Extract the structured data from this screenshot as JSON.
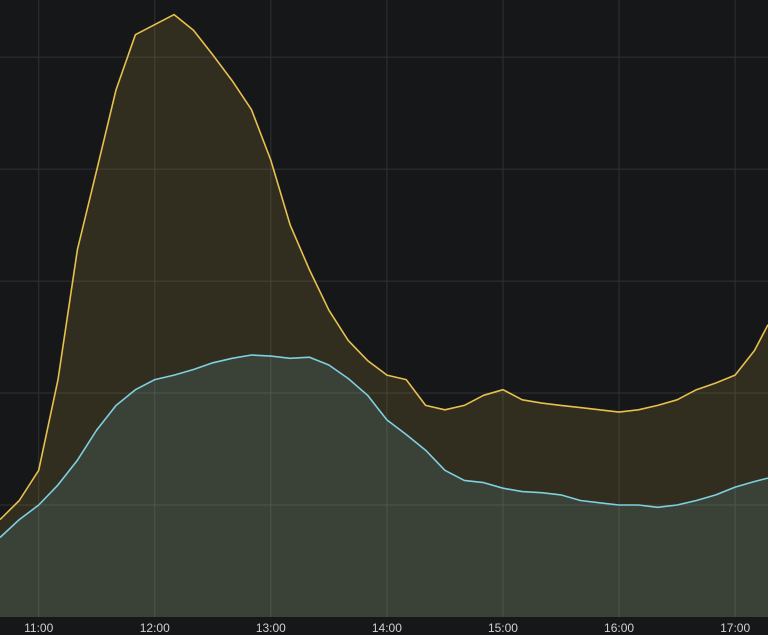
{
  "chart_data": {
    "type": "area",
    "x": [
      "10:40",
      "10:50",
      "11:00",
      "11:10",
      "11:20",
      "11:30",
      "11:40",
      "11:50",
      "12:00",
      "12:10",
      "12:20",
      "12:30",
      "12:40",
      "12:50",
      "13:00",
      "13:10",
      "13:20",
      "13:30",
      "13:40",
      "13:50",
      "14:00",
      "14:10",
      "14:20",
      "14:30",
      "14:40",
      "14:50",
      "15:00",
      "15:10",
      "15:20",
      "15:30",
      "15:40",
      "15:50",
      "16:00",
      "16:10",
      "16:20",
      "16:30",
      "16:40",
      "16:50",
      "17:00",
      "17:10",
      "17:17"
    ],
    "series": [
      {
        "color": "#e8c04e",
        "values": [
          0.87,
          1.04,
          1.31,
          2.12,
          3.28,
          3.99,
          4.71,
          5.2,
          5.29,
          5.38,
          5.24,
          5.02,
          4.79,
          4.53,
          4.08,
          3.5,
          3.1,
          2.74,
          2.47,
          2.29,
          2.16,
          2.12,
          1.89,
          1.85,
          1.89,
          1.98,
          2.03,
          1.94,
          1.91,
          1.89,
          1.87,
          1.85,
          1.83,
          1.85,
          1.89,
          1.94,
          2.03,
          2.09,
          2.16,
          2.38,
          2.61
        ]
      },
      {
        "color": "#7fd0e2",
        "values": [
          0.71,
          0.87,
          1.0,
          1.18,
          1.4,
          1.67,
          1.89,
          2.03,
          2.12,
          2.16,
          2.21,
          2.27,
          2.31,
          2.34,
          2.33,
          2.31,
          2.32,
          2.25,
          2.13,
          1.98,
          1.76,
          1.63,
          1.49,
          1.31,
          1.22,
          1.2,
          1.15,
          1.12,
          1.11,
          1.09,
          1.04,
          1.02,
          1.0,
          1.0,
          0.98,
          1.0,
          1.04,
          1.09,
          1.16,
          1.21,
          1.24
        ]
      }
    ],
    "xlim": [
      "10:40",
      "17:17"
    ],
    "xticks": [
      "11:00",
      "12:00",
      "13:00",
      "14:00",
      "15:00",
      "16:00",
      "17:00"
    ],
    "ylim": [
      0,
      5.51
    ],
    "yticks": [
      1,
      2,
      3,
      4,
      5
    ],
    "grid": true
  }
}
